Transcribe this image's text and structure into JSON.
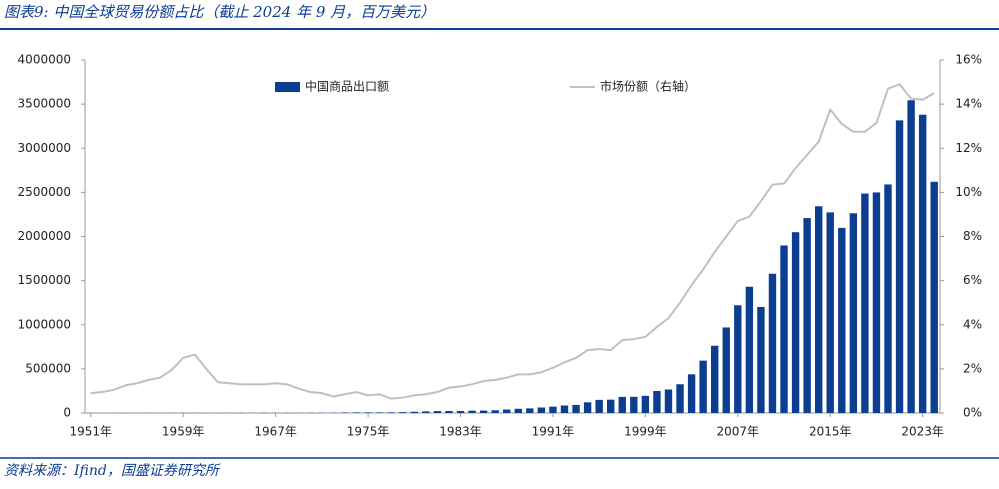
{
  "title": "图表9:  中国全球贸易份额占比（截止 2024 年 9 月，百万美元）",
  "source": "资料来源：Ifind，国盛证券研究所",
  "chart_data": {
    "type": "bar-line",
    "categories": [
      "1951年",
      null,
      null,
      null,
      null,
      null,
      null,
      null,
      "1959年",
      null,
      null,
      null,
      null,
      null,
      null,
      null,
      "1967年",
      null,
      null,
      null,
      null,
      null,
      null,
      null,
      "1975年",
      null,
      null,
      null,
      null,
      null,
      null,
      null,
      "1983年",
      null,
      null,
      null,
      null,
      null,
      null,
      null,
      "1991年",
      null,
      null,
      null,
      null,
      null,
      null,
      null,
      "1999年",
      null,
      null,
      null,
      null,
      null,
      null,
      null,
      "2007年",
      null,
      null,
      null,
      null,
      null,
      null,
      null,
      "2015年",
      null,
      null,
      null,
      null,
      null,
      null,
      null,
      "2023年",
      null
    ],
    "series": [
      {
        "name": "中国商品出口额",
        "color": "#0b3d91",
        "type": "bar",
        "values": [
          757,
          823,
          1022,
          1146,
          1412,
          1645,
          1597,
          1981,
          2261,
          1856,
          1491,
          1490,
          1650,
          1916,
          2228,
          2366,
          2135,
          2103,
          2204,
          2260,
          2636,
          3443,
          5819,
          6949,
          7264,
          6855,
          7590,
          9745,
          13658,
          18119,
          22007,
          22321,
          22226,
          26139,
          27350,
          30942,
          39437,
          47516,
          52538,
          62091,
          71843,
          84940,
          91744,
          121006,
          148780,
          151048,
          182792,
          183712,
          194931,
          249203,
          266098,
          325596,
          438228,
          593326,
          761953,
          968978,
          1220456,
          1430693,
          1201612,
          1577754,
          1898381,
          2048714,
          2209004,
          2342293,
          2273468,
          2097631,
          2263371,
          2486695,
          2499457,
          2589952,
          3316000,
          3544000,
          3380000,
          2620000
        ]
      },
      {
        "name": "市场份额（右轴）",
        "color": "#c0c0c0",
        "type": "line",
        "axis": "y2",
        "values": [
          0.9,
          0.95,
          1.05,
          1.25,
          1.35,
          1.5,
          1.6,
          1.95,
          2.5,
          2.65,
          2.0,
          1.4,
          1.35,
          1.3,
          1.3,
          1.3,
          1.35,
          1.3,
          1.1,
          0.95,
          0.9,
          0.75,
          0.85,
          0.95,
          0.8,
          0.85,
          0.65,
          0.7,
          0.8,
          0.85,
          0.95,
          1.15,
          1.2,
          1.3,
          1.45,
          1.5,
          1.6,
          1.75,
          1.75,
          1.85,
          2.05,
          2.3,
          2.5,
          2.85,
          2.9,
          2.85,
          3.3,
          3.35,
          3.45,
          3.9,
          4.3,
          5.0,
          5.8,
          6.5,
          7.3,
          8.0,
          8.7,
          8.9,
          9.6,
          10.35,
          10.4,
          11.1,
          11.7,
          12.3,
          13.75,
          13.1,
          12.75,
          12.75,
          13.15,
          14.7,
          14.9,
          14.25,
          14.2,
          14.5
        ]
      }
    ],
    "ylim": [
      0,
      4000000
    ],
    "yticks": [
      0,
      500000,
      1000000,
      1500000,
      2000000,
      2500000,
      3000000,
      3500000,
      4000000
    ],
    "y2lim": [
      0,
      16
    ],
    "y2ticks": [
      {
        "value": 0,
        "label": "0%"
      },
      {
        "value": 2,
        "label": "2%"
      },
      {
        "value": 4,
        "label": "4%"
      },
      {
        "value": 6,
        "label": "6%"
      },
      {
        "value": 8,
        "label": "8%"
      },
      {
        "value": 10,
        "label": "10%"
      },
      {
        "value": 12,
        "label": "12%"
      },
      {
        "value": 14,
        "label": "14%"
      },
      {
        "value": 16,
        "label": "16%"
      }
    ]
  }
}
